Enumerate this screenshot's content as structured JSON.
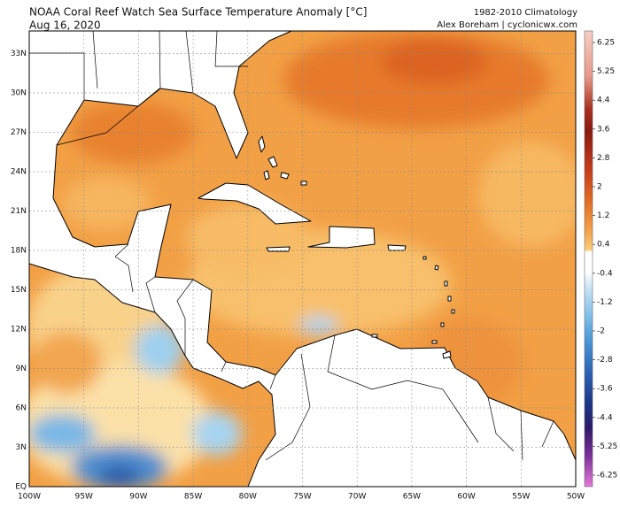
{
  "header": {
    "title": "NOAA Coral Reef Watch Sea Surface Temperature Anomaly [°C]",
    "date": "Aug 16, 2020",
    "climatology": "1982-2010 Climatology",
    "credit": "Alex Boreham | cyclonicwx.com"
  },
  "map": {
    "lat_labels": [
      "EQ",
      "3N",
      "6N",
      "9N",
      "12N",
      "15N",
      "18N",
      "21N",
      "24N",
      "27N",
      "30N",
      "33N"
    ],
    "lon_labels": [
      "100W",
      "95W",
      "90W",
      "85W",
      "80W",
      "75W",
      "70W",
      "65W",
      "60W",
      "55W",
      "50W"
    ]
  },
  "colorbar": {
    "ticks": [
      6.25,
      5.25,
      4.4,
      3.6,
      2.8,
      2,
      1.2,
      0.4,
      -0.4,
      -1.2,
      -2,
      -2.8,
      -3.6,
      -4.4,
      -5.25,
      -6.25
    ]
  }
}
